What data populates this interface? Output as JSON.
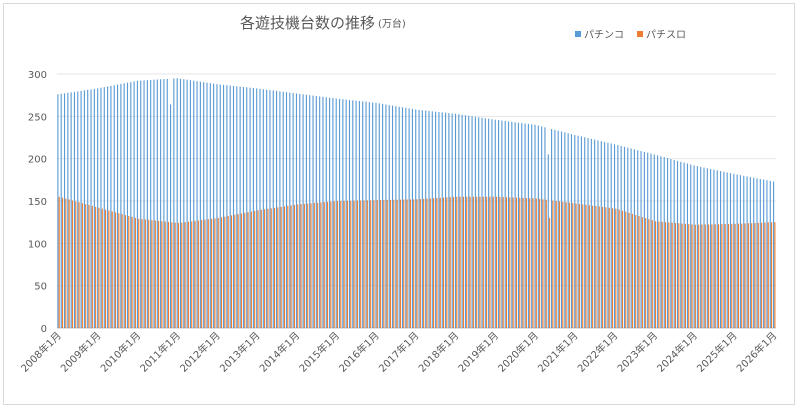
{
  "chart_data": {
    "type": "bar",
    "title": "各遊技機台数の推移",
    "title_unit": "(万台)",
    "xlabel": "",
    "ylabel": "",
    "ylim": [
      0,
      300
    ],
    "yticks": [
      0,
      50,
      100,
      150,
      200,
      250,
      300
    ],
    "grid": "horizontal",
    "legend_position": "top-right",
    "x_start": "2008-01",
    "x_end": "2026-01",
    "x_tick_labels": [
      "2008年1月",
      "2009年1月",
      "2010年1月",
      "2011年1月",
      "2012年1月",
      "2013年1月",
      "2014年1月",
      "2015年1月",
      "2016年1月",
      "2017年1月",
      "2018年1月",
      "2019年1月",
      "2020年1月",
      "2021年1月",
      "2022年1月",
      "2023年1月",
      "2024年1月",
      "2025年1月",
      "2026年1月"
    ],
    "series": [
      {
        "name": "パチンコ",
        "color": "#5b9bd5",
        "values_jan": [
          276,
          283,
          292,
          295,
          288,
          283,
          277,
          271,
          266,
          258,
          253,
          246,
          240,
          228,
          217,
          205,
          192,
          182,
          173
        ]
      },
      {
        "name": "パチスロ",
        "color": "#ed7d31",
        "values_jan": [
          155,
          142,
          129,
          124,
          130,
          139,
          146,
          150,
          151,
          152,
          155,
          155,
          153,
          147,
          141,
          126,
          122,
          123,
          125
        ]
      }
    ],
    "anomalies": [
      {
        "month": "2010-11",
        "series": "パチンコ",
        "value": 264
      },
      {
        "month": "2020-05",
        "series": "パチンコ",
        "value": 205
      },
      {
        "month": "2020-05",
        "series": "パチスロ",
        "value": 130
      }
    ]
  }
}
